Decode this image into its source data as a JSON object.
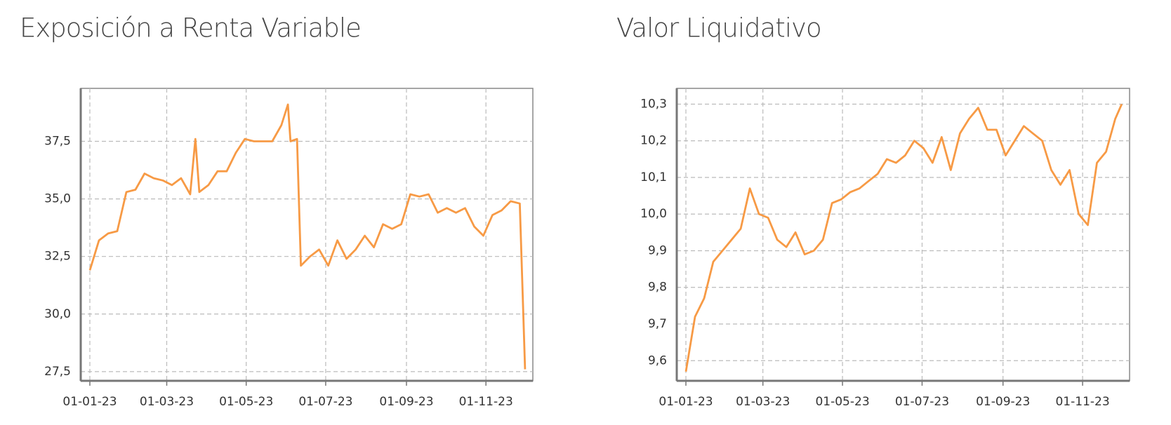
{
  "chart_data": [
    {
      "type": "line",
      "title": "Exposición a Renta Variable",
      "x": [
        "2023-01-01",
        "2023-01-08",
        "2023-01-15",
        "2023-01-22",
        "2023-01-29",
        "2023-02-05",
        "2023-02-12",
        "2023-02-19",
        "2023-02-26",
        "2023-03-05",
        "2023-03-12",
        "2023-03-19",
        "2023-03-23",
        "2023-03-26",
        "2023-04-02",
        "2023-04-09",
        "2023-04-16",
        "2023-04-23",
        "2023-04-30",
        "2023-05-07",
        "2023-05-14",
        "2023-05-21",
        "2023-05-28",
        "2023-06-02",
        "2023-06-04",
        "2023-06-09",
        "2023-06-12",
        "2023-06-19",
        "2023-06-26",
        "2023-07-03",
        "2023-07-10",
        "2023-07-17",
        "2023-07-24",
        "2023-07-31",
        "2023-08-07",
        "2023-08-14",
        "2023-08-21",
        "2023-08-28",
        "2023-09-04",
        "2023-09-11",
        "2023-09-18",
        "2023-09-25",
        "2023-10-02",
        "2023-10-09",
        "2023-10-16",
        "2023-10-23",
        "2023-10-30",
        "2023-11-06",
        "2023-11-13",
        "2023-11-20",
        "2023-11-27",
        "2023-12-01"
      ],
      "series": [
        {
          "name": "Exposición a Renta Variable",
          "color": "#f79a45",
          "values": [
            31.9,
            33.2,
            33.5,
            33.6,
            35.3,
            35.4,
            36.1,
            35.9,
            35.8,
            35.6,
            35.9,
            35.2,
            37.6,
            35.3,
            35.6,
            36.2,
            36.2,
            37.0,
            37.6,
            37.5,
            37.5,
            37.5,
            38.2,
            39.1,
            37.5,
            37.6,
            32.1,
            32.5,
            32.8,
            32.1,
            33.2,
            32.4,
            32.8,
            33.4,
            32.9,
            33.9,
            33.7,
            33.9,
            35.2,
            35.1,
            35.2,
            34.4,
            34.6,
            34.4,
            34.6,
            33.8,
            33.4,
            34.3,
            34.5,
            34.9,
            34.8,
            27.6
          ]
        }
      ],
      "xlim": [
        "2022-12-25",
        "2023-12-07"
      ],
      "xticks": [
        {
          "value": "2023-01-01",
          "label": "01-01-23"
        },
        {
          "value": "2023-03-01",
          "label": "01-03-23"
        },
        {
          "value": "2023-05-01",
          "label": "01-05-23"
        },
        {
          "value": "2023-07-01",
          "label": "01-07-23"
        },
        {
          "value": "2023-09-01",
          "label": "01-09-23"
        },
        {
          "value": "2023-11-01",
          "label": "01-11-23"
        }
      ],
      "ylim": [
        27.1,
        39.8
      ],
      "yticks": [
        {
          "value": 27.5,
          "label": "27,5"
        },
        {
          "value": 30,
          "label": "30,0"
        },
        {
          "value": 32.5,
          "label": "32,5"
        },
        {
          "value": 35,
          "label": "35,0"
        },
        {
          "value": 37.5,
          "label": "37,5"
        }
      ],
      "grid": true
    },
    {
      "type": "line",
      "title": "Valor Liquidativo",
      "x": [
        "2023-01-01",
        "2023-01-08",
        "2023-01-15",
        "2023-01-22",
        "2023-01-29",
        "2023-02-05",
        "2023-02-12",
        "2023-02-19",
        "2023-02-26",
        "2023-03-05",
        "2023-03-12",
        "2023-03-19",
        "2023-03-26",
        "2023-04-02",
        "2023-04-09",
        "2023-04-16",
        "2023-04-23",
        "2023-04-30",
        "2023-05-07",
        "2023-05-14",
        "2023-05-21",
        "2023-05-28",
        "2023-06-04",
        "2023-06-11",
        "2023-06-18",
        "2023-06-25",
        "2023-07-02",
        "2023-07-09",
        "2023-07-16",
        "2023-07-23",
        "2023-07-30",
        "2023-08-06",
        "2023-08-13",
        "2023-08-20",
        "2023-08-27",
        "2023-09-03",
        "2023-09-10",
        "2023-09-17",
        "2023-09-24",
        "2023-10-01",
        "2023-10-08",
        "2023-10-15",
        "2023-10-22",
        "2023-10-29",
        "2023-11-05",
        "2023-11-12",
        "2023-11-19",
        "2023-11-26",
        "2023-12-01"
      ],
      "series": [
        {
          "name": "Valor Liquidativo",
          "color": "#f79a45",
          "values": [
            9.57,
            9.72,
            9.77,
            9.87,
            9.9,
            9.93,
            9.96,
            10.07,
            10.0,
            9.99,
            9.93,
            9.91,
            9.95,
            9.89,
            9.9,
            9.93,
            10.03,
            10.04,
            10.06,
            10.07,
            10.09,
            10.11,
            10.15,
            10.14,
            10.16,
            10.2,
            10.18,
            10.14,
            10.21,
            10.12,
            10.22,
            10.26,
            10.29,
            10.23,
            10.23,
            10.16,
            10.2,
            10.24,
            10.22,
            10.2,
            10.12,
            10.08,
            10.12,
            10.0,
            9.97,
            10.14,
            10.17,
            10.26,
            10.3
          ]
        }
      ],
      "xlim": [
        "2022-12-25",
        "2023-12-07"
      ],
      "xticks": [
        {
          "value": "2023-01-01",
          "label": "01-01-23"
        },
        {
          "value": "2023-03-01",
          "label": "01-03-23"
        },
        {
          "value": "2023-05-01",
          "label": "01-05-23"
        },
        {
          "value": "2023-07-01",
          "label": "01-07-23"
        },
        {
          "value": "2023-09-01",
          "label": "01-09-23"
        },
        {
          "value": "2023-11-01",
          "label": "01-11-23"
        }
      ],
      "ylim": [
        9.545,
        10.343
      ],
      "yticks": [
        {
          "value": 9.6,
          "label": "9,6"
        },
        {
          "value": 9.7,
          "label": "9,7"
        },
        {
          "value": 9.8,
          "label": "9,8"
        },
        {
          "value": 9.9,
          "label": "9,9"
        },
        {
          "value": 10.0,
          "label": "10,0"
        },
        {
          "value": 10.1,
          "label": "10,1"
        },
        {
          "value": 10.2,
          "label": "10,2"
        },
        {
          "value": 10.3,
          "label": "10,3"
        }
      ],
      "grid": true
    }
  ]
}
